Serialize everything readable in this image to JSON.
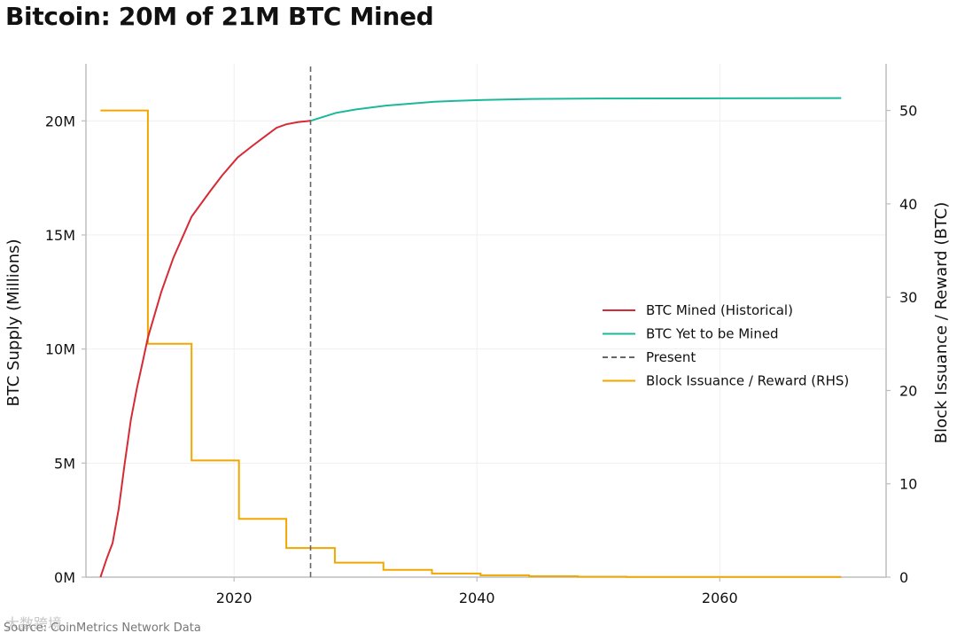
{
  "chart_data": {
    "type": "line",
    "title": "Bitcoin: 20M of 21M BTC Mined",
    "xlabel": "",
    "ylabel": "BTC Supply (Millions)",
    "y2label": "Block Issuance / Reward (BTC)",
    "xlim": [
      2007.8,
      2073.7
    ],
    "ylim": [
      0,
      22.5
    ],
    "y2lim": [
      0,
      55
    ],
    "x_ticks": [
      2020,
      2040,
      2060
    ],
    "y_ticks": [
      0,
      5,
      10,
      15,
      20
    ],
    "y_tick_labels": [
      "0M",
      "5M",
      "10M",
      "15M",
      "20M"
    ],
    "y2_ticks": [
      0,
      10,
      20,
      30,
      40,
      50
    ],
    "grid": true,
    "legend_position": "center-right",
    "present_year": 2026.3,
    "colors": {
      "mined": "#d62a35",
      "yet_to_mine": "#1bb89c",
      "present": "#666666",
      "issuance": "#f0a800"
    },
    "series": [
      {
        "name": "BTC Mined (Historical)",
        "axis": "left",
        "x": [
          2009.0,
          2009.5,
          2010.0,
          2010.5,
          2011.0,
          2011.5,
          2012.0,
          2012.5,
          2012.9,
          2014.0,
          2015.0,
          2016.5,
          2018.0,
          2019.0,
          2020.3,
          2021.5,
          2022.5,
          2023.5,
          2024.3,
          2025.3,
          2026.3
        ],
        "values": [
          0,
          0.8,
          1.5,
          3.0,
          5.0,
          6.9,
          8.3,
          9.5,
          10.5,
          12.5,
          14.0,
          15.8,
          16.9,
          17.6,
          18.4,
          18.9,
          19.3,
          19.7,
          19.85,
          19.95,
          20.0
        ]
      },
      {
        "name": "BTC Yet to be Mined",
        "axis": "left",
        "x": [
          2026.3,
          2028.4,
          2030.0,
          2032.5,
          2036.5,
          2040.5,
          2044.5,
          2050.0,
          2060.0,
          2070.0
        ],
        "values": [
          20.0,
          20.35,
          20.5,
          20.67,
          20.84,
          20.92,
          20.96,
          20.98,
          20.99,
          21.0
        ]
      },
      {
        "name": "Present",
        "axis": "left",
        "style": "dashed",
        "x": [
          2026.3,
          2026.3
        ],
        "values": [
          0,
          22.5
        ]
      },
      {
        "name": "Block Issuance / Reward (RHS)",
        "axis": "right",
        "step": true,
        "x": [
          2009.0,
          2012.9,
          2012.9,
          2016.5,
          2016.5,
          2020.4,
          2020.4,
          2024.3,
          2024.3,
          2028.3,
          2028.3,
          2032.3,
          2032.3,
          2036.3,
          2036.3,
          2040.3,
          2040.3,
          2044.3,
          2044.3,
          2048.3,
          2048.3,
          2052.3,
          2052.3,
          2070.0
        ],
        "values": [
          50,
          50,
          25,
          25,
          12.5,
          12.5,
          6.25,
          6.25,
          3.125,
          3.125,
          1.5625,
          1.5625,
          0.78125,
          0.78125,
          0.390625,
          0.390625,
          0.1953125,
          0.1953125,
          0.09765625,
          0.09765625,
          0.048828125,
          0.048828125,
          0.0244140625,
          0.0244140625
        ]
      }
    ]
  },
  "footer": {
    "source": "Source: CoinMetrics Network Data",
    "watermark": "大数跨境"
  }
}
